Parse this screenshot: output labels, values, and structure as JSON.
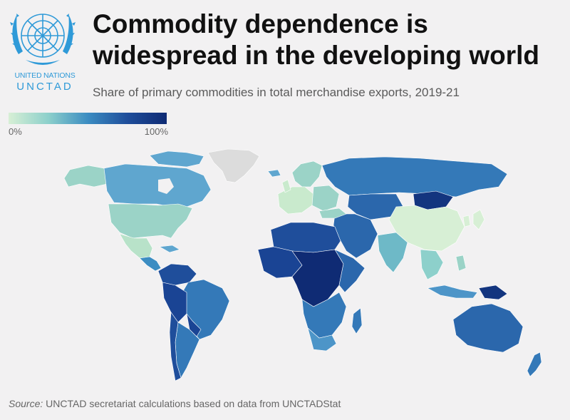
{
  "header": {
    "title_line1": "Commodity dependence is",
    "title_line2": "widespread in the developing world",
    "subtitle": "Share of primary commodities in total merchandise exports, 2019-21"
  },
  "logo": {
    "org_line1": "UNITED NATIONS",
    "org_line2": "UNCTAD",
    "color": "#2f9ad8"
  },
  "legend": {
    "min_label": "0%",
    "max_label": "100%",
    "colors": [
      "#d7efd5",
      "#8dd0cb",
      "#3c8dc2",
      "#1f4e9b",
      "#0f2b74"
    ]
  },
  "map": {
    "metric": "Share of primary commodities in total merchandise exports",
    "no_data_color": "#dcdcdc",
    "regions": [
      {
        "name": "Greenland",
        "level": null
      },
      {
        "name": "Canada",
        "level": 0.45
      },
      {
        "name": "United States",
        "level": 0.3
      },
      {
        "name": "Mexico",
        "level": 0.25
      },
      {
        "name": "Central America",
        "level": 0.6
      },
      {
        "name": "Colombia / Venezuela",
        "level": 0.85
      },
      {
        "name": "Brazil",
        "level": 0.7
      },
      {
        "name": "Peru / Bolivia",
        "level": 0.9
      },
      {
        "name": "Argentina",
        "level": 0.7
      },
      {
        "name": "Chile",
        "level": 0.85
      },
      {
        "name": "Western Europe",
        "level": 0.2
      },
      {
        "name": "Eastern Europe",
        "level": 0.3
      },
      {
        "name": "Russia",
        "level": 0.75
      },
      {
        "name": "Kazakhstan / Central Asia",
        "level": 0.8
      },
      {
        "name": "Mongolia",
        "level": 0.95
      },
      {
        "name": "China",
        "level": 0.08
      },
      {
        "name": "Japan / Korea",
        "level": 0.1
      },
      {
        "name": "Middle East",
        "level": 0.8
      },
      {
        "name": "India",
        "level": 0.35
      },
      {
        "name": "Southeast Asia",
        "level": 0.4
      },
      {
        "name": "Indonesia",
        "level": 0.65
      },
      {
        "name": "Papua New Guinea",
        "level": 0.9
      },
      {
        "name": "North Africa",
        "level": 0.85
      },
      {
        "name": "West Africa",
        "level": 0.9
      },
      {
        "name": "Central Africa",
        "level": 0.95
      },
      {
        "name": "East Africa",
        "level": 0.75
      },
      {
        "name": "Southern Africa",
        "level": 0.65
      },
      {
        "name": "South Africa",
        "level": 0.55
      },
      {
        "name": "Madagascar",
        "level": 0.7
      },
      {
        "name": "Australia",
        "level": 0.85
      },
      {
        "name": "New Zealand",
        "level": 0.75
      }
    ]
  },
  "footer": {
    "source_label": "Source:",
    "source_text": " UNCTAD secretariat calculations based on data from UNCTADStat"
  }
}
